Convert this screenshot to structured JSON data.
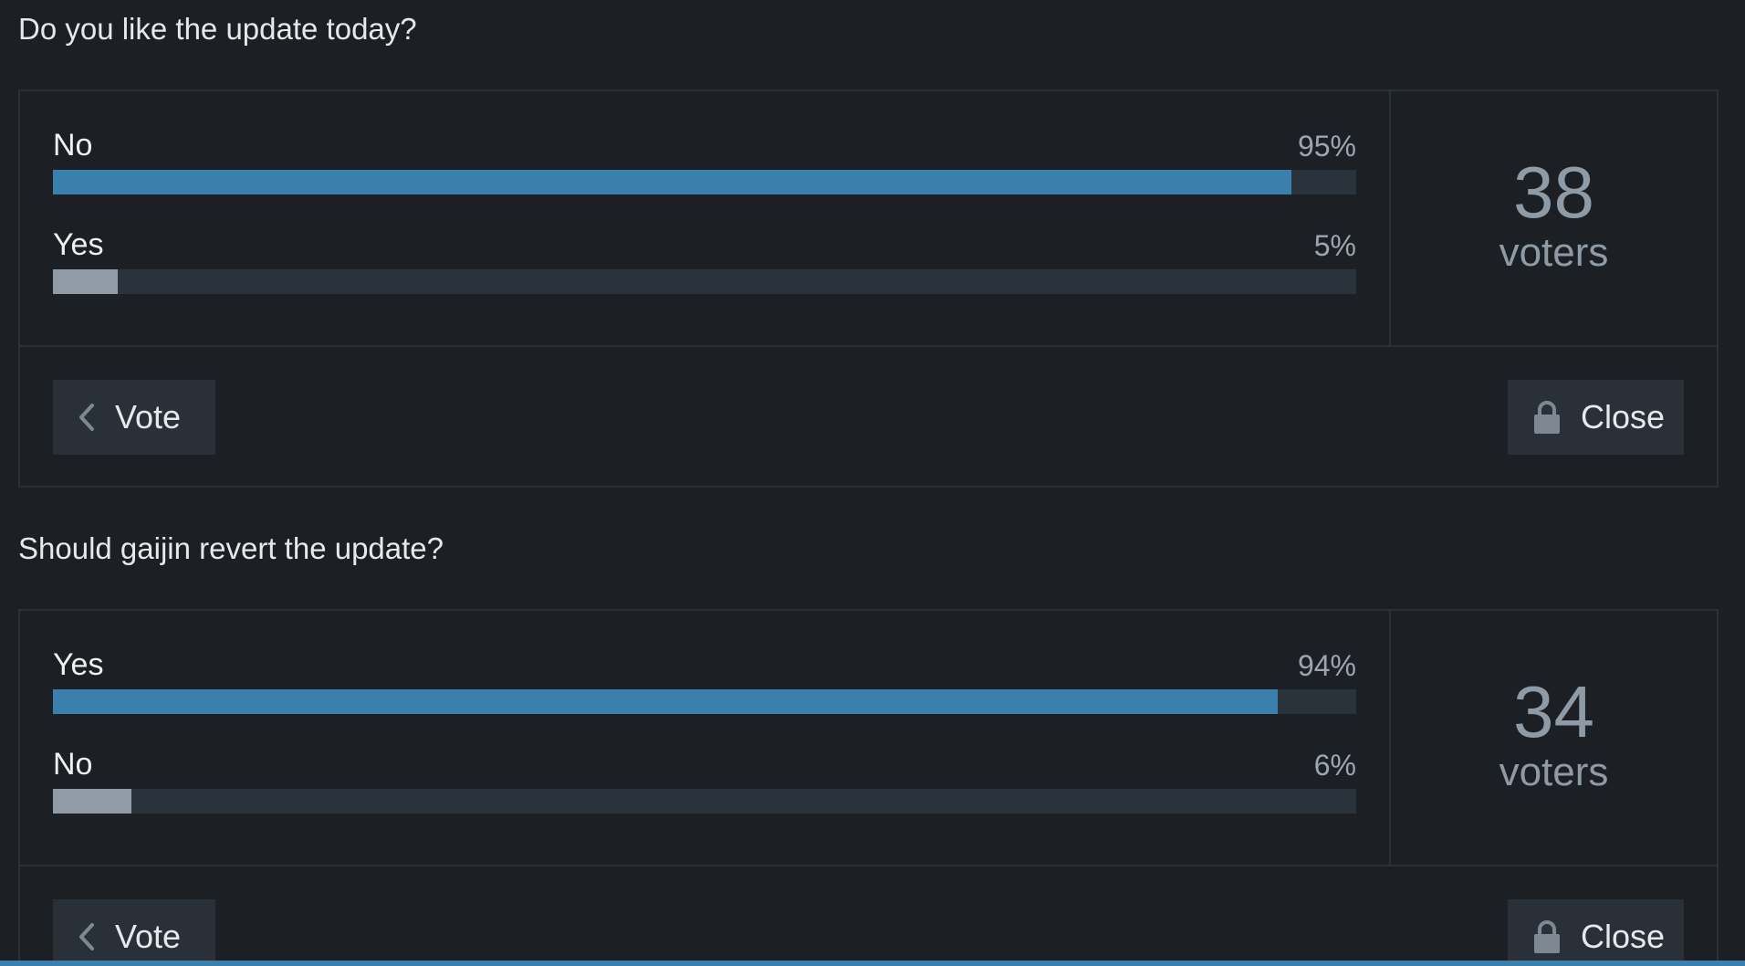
{
  "polls": [
    {
      "question": "Do you like the update today?",
      "choices": [
        {
          "label": "No",
          "percent_text": "95%",
          "percent": 95,
          "leader": true
        },
        {
          "label": "Yes",
          "percent_text": "5%",
          "percent": 5,
          "leader": false
        }
      ],
      "voter_count": "38",
      "voter_word": "voters",
      "vote_label": "Vote",
      "close_label": "Close"
    },
    {
      "question": "Should gaijin revert the update?",
      "choices": [
        {
          "label": "Yes",
          "percent_text": "94%",
          "percent": 94,
          "leader": true
        },
        {
          "label": "No",
          "percent_text": "6%",
          "percent": 6,
          "leader": false
        }
      ],
      "voter_count": "34",
      "voter_word": "voters",
      "vote_label": "Vote",
      "close_label": "Close"
    }
  ],
  "colors": {
    "background": "#1c2025",
    "leader_bar": "#3b7fad",
    "other_bar": "#8f9ba6",
    "bar_track": "#2a323b",
    "muted_text": "#8e9aa6"
  },
  "icons": {
    "vote": "chevron-left-icon",
    "close": "lock-icon"
  }
}
